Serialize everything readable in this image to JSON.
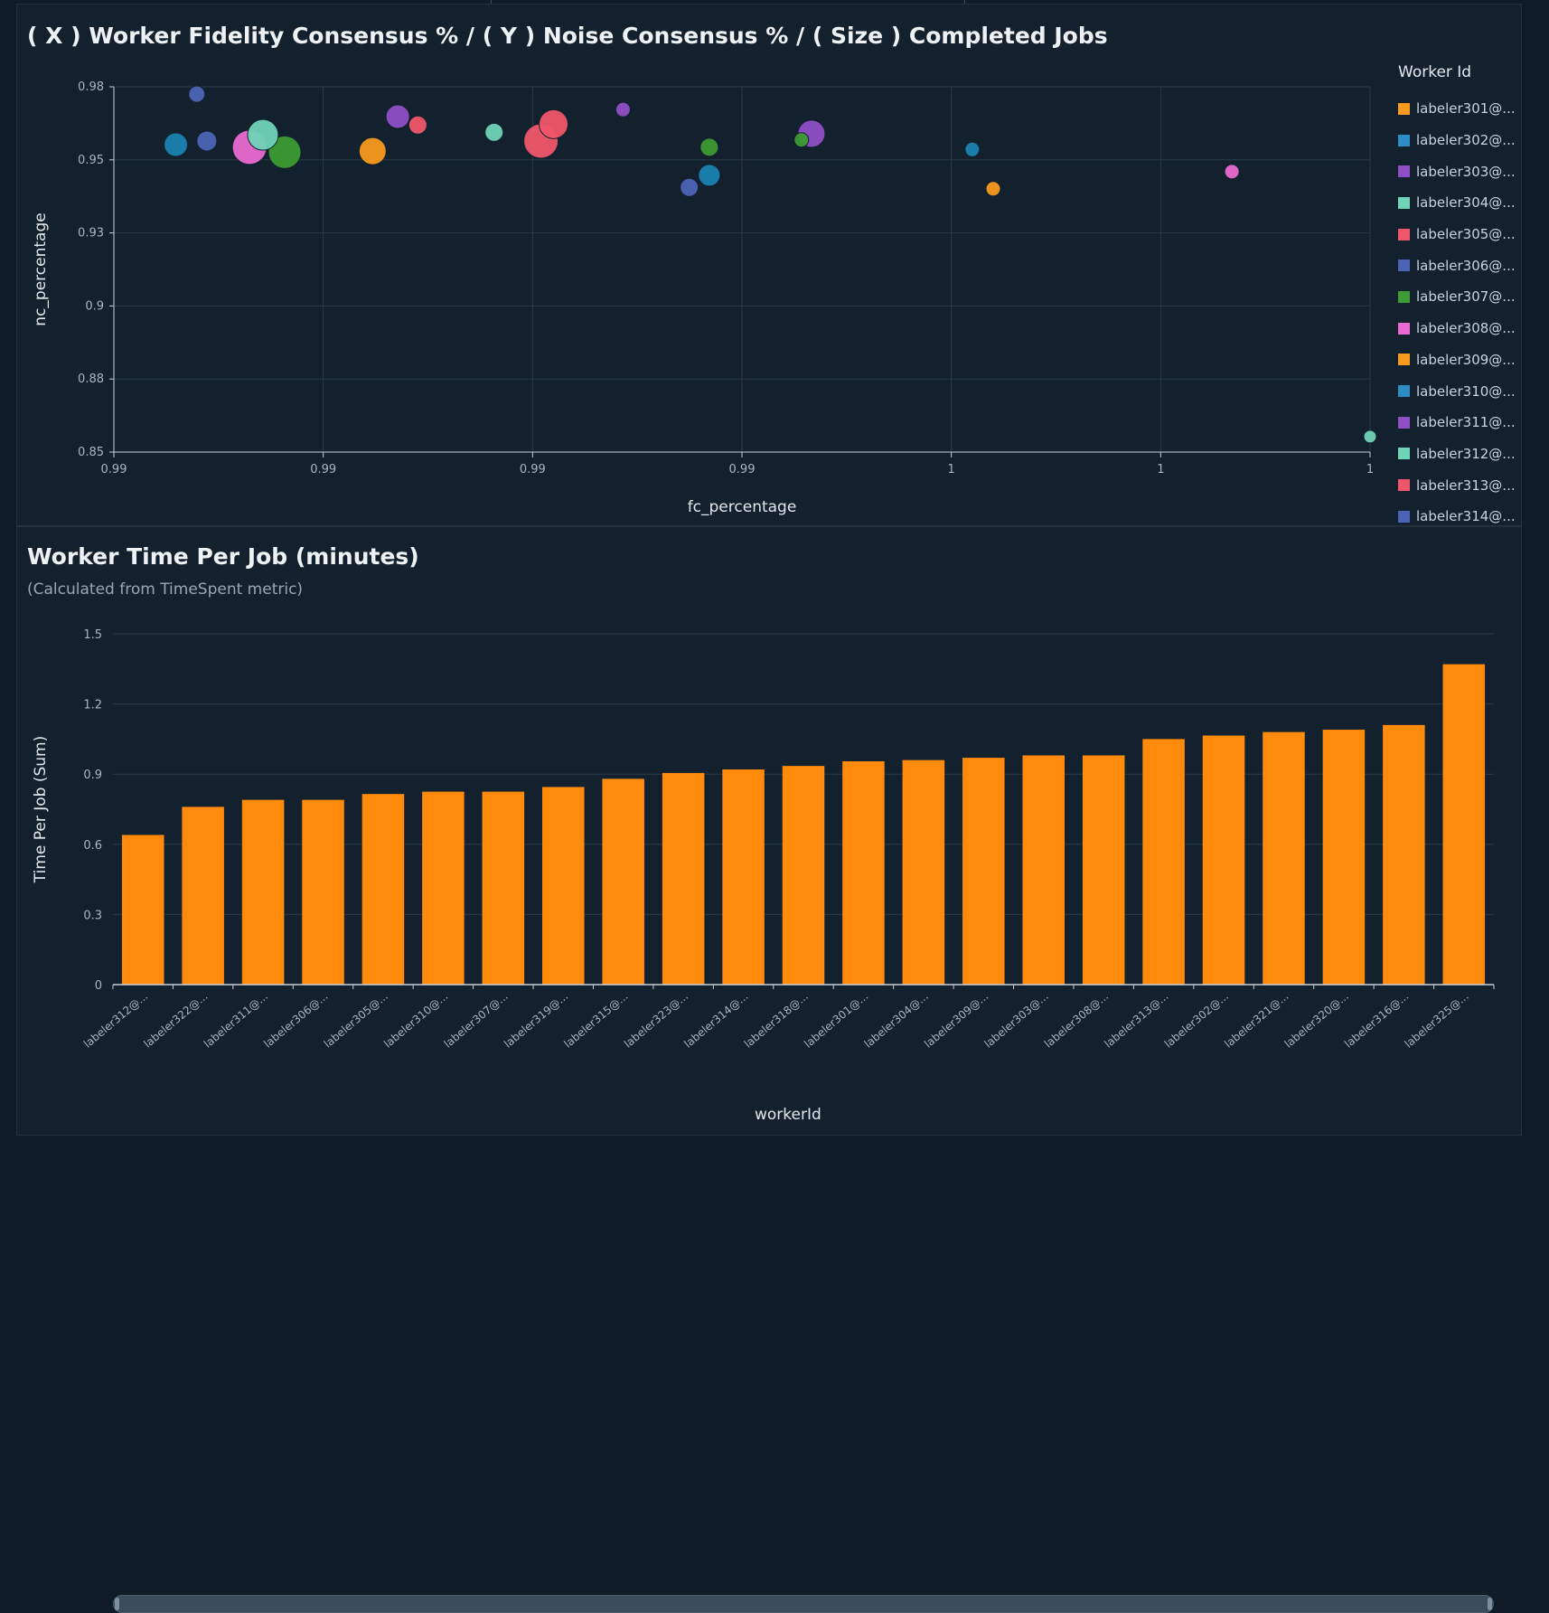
{
  "scatter_panel": {
    "title": "( X ) Worker Fidelity Consensus %  / ( Y ) Noise Consensus % / ( Size ) Completed Jobs",
    "xlabel": "fc_percentage",
    "ylabel": "nc_percentage",
    "legend_title": "Worker Id"
  },
  "bar_panel": {
    "title": "Worker Time Per Job (minutes)",
    "subtitle": "(Calculated from TimeSpent metric)",
    "xlabel": "workerId",
    "ylabel": "Time Per Job (Sum)"
  },
  "colors": {
    "background": "#0f1c27",
    "panel": "#13212e",
    "grid": "#2b3a47",
    "bar": "#ff8a0c",
    "palette": [
      "#f89a1d",
      "#2d8cc4",
      "#8e4fc6",
      "#6fd3b6",
      "#f0566a",
      "#4c64b6",
      "#3c9b32",
      "#e86ad0",
      "#f89a1d",
      "#2d8cc4",
      "#8e4fc6",
      "#6fd3b6",
      "#f0566a",
      "#4c64b6"
    ]
  },
  "chart_data": [
    {
      "type": "scatter",
      "title": "( X ) Worker Fidelity Consensus %  / ( Y ) Noise Consensus % / ( Size ) Completed Jobs",
      "xlabel": "fc_percentage",
      "ylabel": "nc_percentage",
      "xlim": [
        0.985,
        1.0
      ],
      "ylim": [
        0.85,
        0.98
      ],
      "x_ticks": [
        0.985,
        0.9875,
        0.99,
        0.9925,
        0.995,
        0.9975,
        1.0
      ],
      "x_tick_labels": [
        "0.99",
        "0.99",
        "0.99",
        "0.99",
        "1",
        "1",
        "1"
      ],
      "y_ticks": [
        0.85,
        0.876,
        0.902,
        0.928,
        0.954,
        0.98
      ],
      "y_tick_labels": [
        "0.85",
        "0.88",
        "0.9",
        "0.93",
        "0.95",
        "0.98"
      ],
      "legend_title": "Worker Id",
      "legend_position": "right",
      "grid": true,
      "legend": [
        "labeler301@...",
        "labeler302@...",
        "labeler303@...",
        "labeler304@...",
        "labeler305@...",
        "labeler306@...",
        "labeler307@...",
        "labeler308@...",
        "labeler309@...",
        "labeler310@...",
        "labeler311@...",
        "labeler312@...",
        "labeler313@...",
        "labeler314@..."
      ],
      "points": [
        {
          "x": 0.98599,
          "y": 0.9774,
          "size": 6,
          "color": "#4c64b6"
        },
        {
          "x": 0.98574,
          "y": 0.9594,
          "size": 10,
          "color": "#1a82b0"
        },
        {
          "x": 0.98611,
          "y": 0.9607,
          "size": 8,
          "color": "#4c64b6"
        },
        {
          "x": 0.98662,
          "y": 0.9585,
          "size": 16,
          "color": "#e86ad0"
        },
        {
          "x": 0.98678,
          "y": 0.9629,
          "size": 14,
          "color": "#6fd3b6"
        },
        {
          "x": 0.98704,
          "y": 0.9567,
          "size": 15,
          "color": "#3c9b32"
        },
        {
          "x": 0.98809,
          "y": 0.9571,
          "size": 12,
          "color": "#f89a1d"
        },
        {
          "x": 0.98839,
          "y": 0.9694,
          "size": 10,
          "color": "#8e4fc6"
        },
        {
          "x": 0.98863,
          "y": 0.9664,
          "size": 7,
          "color": "#f0566a"
        },
        {
          "x": 0.98954,
          "y": 0.9638,
          "size": 7,
          "color": "#6fd3b6"
        },
        {
          "x": 0.9901,
          "y": 0.9607,
          "size": 16,
          "color": "#f0566a"
        },
        {
          "x": 0.99025,
          "y": 0.9667,
          "size": 13,
          "color": "#f0566a"
        },
        {
          "x": 0.99108,
          "y": 0.9719,
          "size": 5,
          "color": "#8e4fc6"
        },
        {
          "x": 0.99187,
          "y": 0.9442,
          "size": 7,
          "color": "#4c64b6"
        },
        {
          "x": 0.99211,
          "y": 0.9485,
          "size": 9,
          "color": "#1a82b0"
        },
        {
          "x": 0.99211,
          "y": 0.9585,
          "size": 7,
          "color": "#3c9b32"
        },
        {
          "x": 0.99333,
          "y": 0.9633,
          "size": 12,
          "color": "#8e4fc6"
        },
        {
          "x": 0.99321,
          "y": 0.9611,
          "size": 5,
          "color": "#3c9b32"
        },
        {
          "x": 0.99525,
          "y": 0.9577,
          "size": 5,
          "color": "#1a82b0"
        },
        {
          "x": 0.9955,
          "y": 0.9437,
          "size": 5,
          "color": "#f89a1d"
        },
        {
          "x": 0.99835,
          "y": 0.9498,
          "size": 5,
          "color": "#e86ad0"
        },
        {
          "x": 1.0,
          "y": 0.8555,
          "size": 4,
          "color": "#6fd3b6"
        }
      ]
    },
    {
      "type": "bar",
      "title": "Worker Time Per Job (minutes)",
      "subtitle": "(Calculated from TimeSpent metric)",
      "xlabel": "workerId",
      "ylabel": "Time Per Job (Sum)",
      "ylim": [
        0,
        1.5
      ],
      "y_ticks": [
        0,
        0.3,
        0.6,
        0.9,
        1.2,
        1.5
      ],
      "grid": true,
      "categories": [
        "labeler312@...",
        "labeler322@...",
        "labeler311@...",
        "labeler306@...",
        "labeler305@...",
        "labeler310@...",
        "labeler307@...",
        "labeler319@...",
        "labeler315@...",
        "labeler323@...",
        "labeler314@...",
        "labeler318@...",
        "labeler301@...",
        "labeler304@...",
        "labeler309@...",
        "labeler303@...",
        "labeler308@...",
        "labeler313@...",
        "labeler302@...",
        "labeler321@...",
        "labeler320@...",
        "labeler316@...",
        "labeler325@..."
      ],
      "values": [
        0.64,
        0.76,
        0.79,
        0.79,
        0.815,
        0.825,
        0.825,
        0.845,
        0.88,
        0.905,
        0.92,
        0.935,
        0.955,
        0.96,
        0.97,
        0.98,
        0.98,
        1.05,
        1.065,
        1.08,
        1.09,
        1.11,
        1.37
      ]
    }
  ]
}
